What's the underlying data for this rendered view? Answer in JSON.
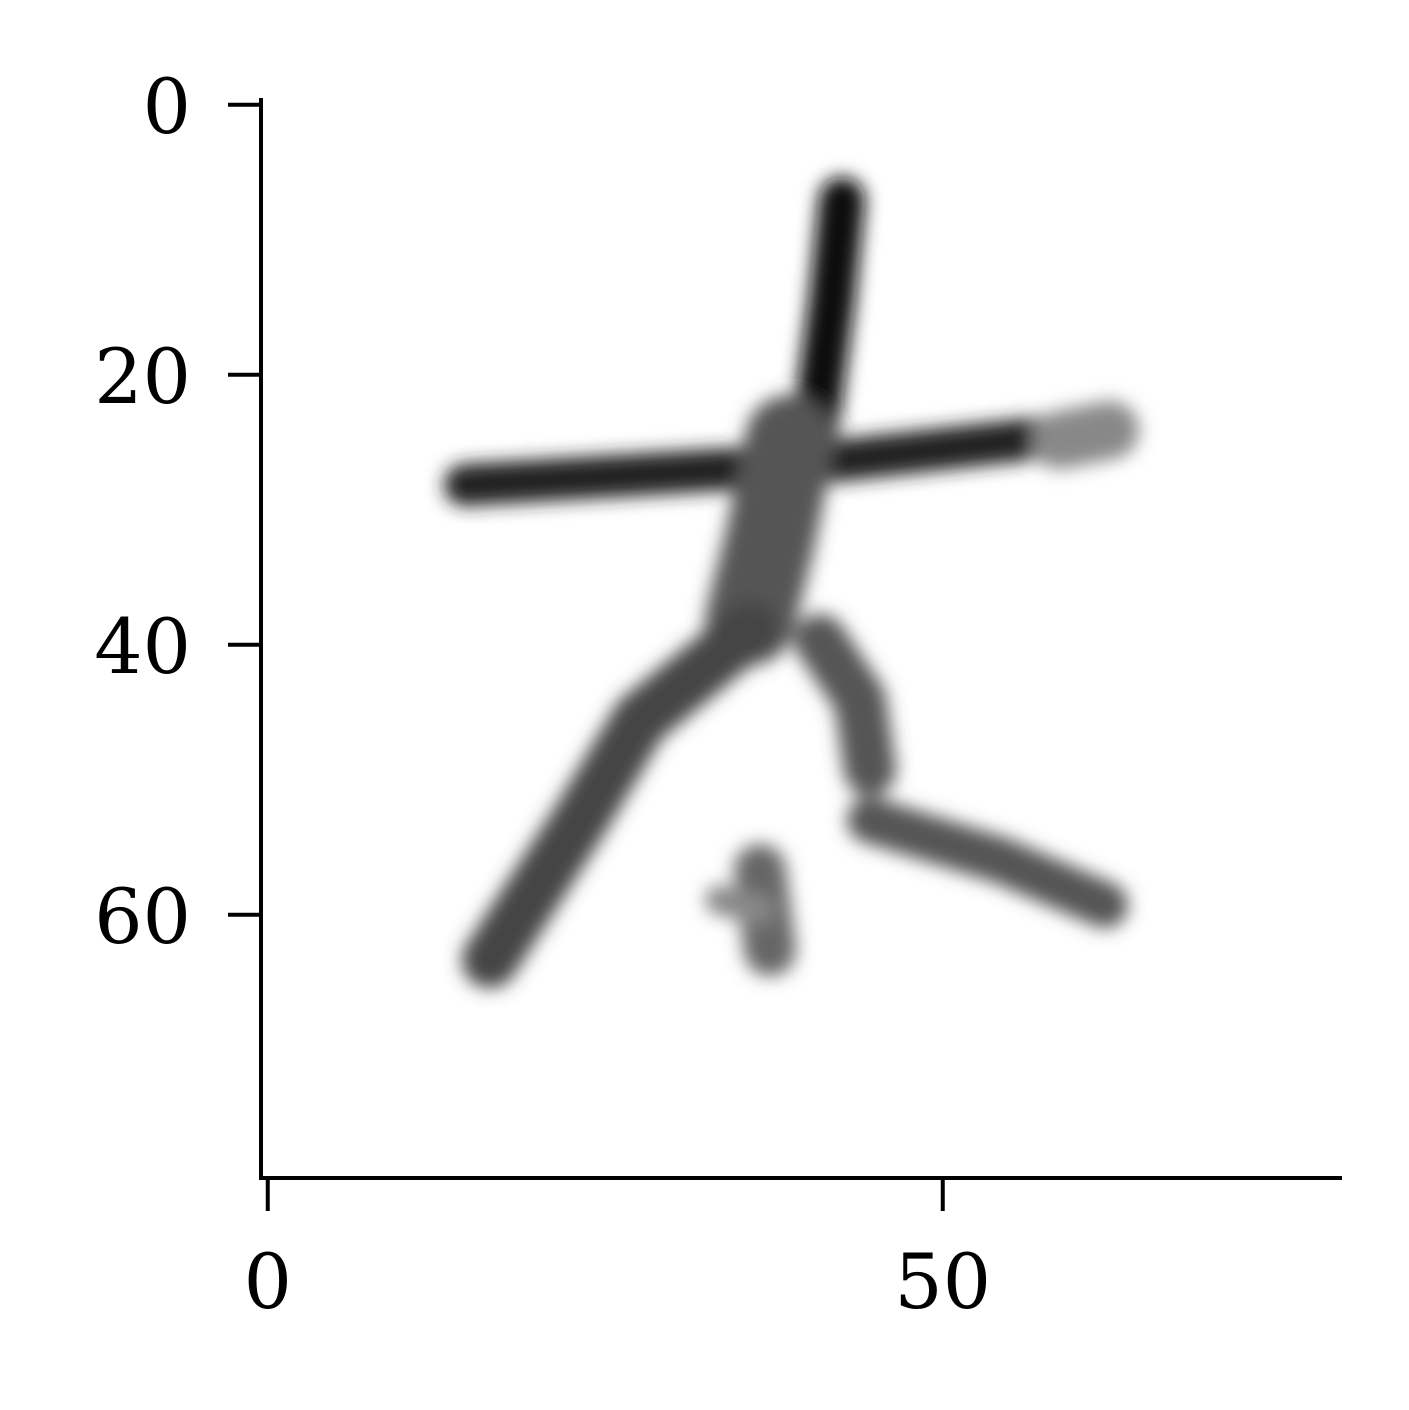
{
  "chart_data": {
    "type": "image",
    "xlim": [
      -0.5,
      79.5
    ],
    "ylim": [
      79.5,
      -0.5
    ],
    "xticks": [
      0,
      50
    ],
    "yticks": [
      0,
      20,
      40,
      60
    ],
    "colormap": "gray_r"
  }
}
